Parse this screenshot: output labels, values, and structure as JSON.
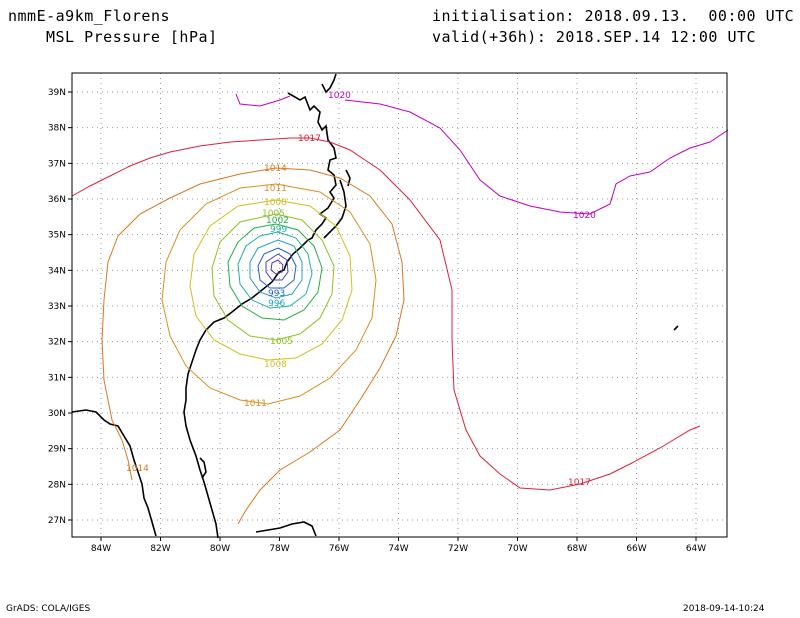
{
  "header": {
    "model": "nmmE-a9km_Florens",
    "field": "MSL Pressure [hPa]",
    "init": "initialisation: 2018.09.13.  00:00 UTC",
    "valid": "valid(+36h): 2018.SEP.14 12:00 UTC"
  },
  "footer": {
    "credit": "GrADS: COLA/IGES",
    "timestamp": "2018-09-14-10:24"
  },
  "axes": {
    "lat_ticks": [
      "39N",
      "38N",
      "37N",
      "36N",
      "35N",
      "34N",
      "33N",
      "32N",
      "31N",
      "30N",
      "29N",
      "28N",
      "27N"
    ],
    "lon_ticks": [
      "84W",
      "82W",
      "80W",
      "78W",
      "76W",
      "74W",
      "72W",
      "70W",
      "68W",
      "66W",
      "64W"
    ]
  },
  "contours": {
    "labels": [
      {
        "value": "1020",
        "color": "#c000c0"
      },
      {
        "value": "1017",
        "color": "#e0203c"
      },
      {
        "value": "1014",
        "color": "#d87820"
      },
      {
        "value": "1011",
        "color": "#d89020"
      },
      {
        "value": "1008",
        "color": "#d0c020"
      },
      {
        "value": "1005",
        "color": "#90c020"
      },
      {
        "value": "1002",
        "color": "#20b040"
      },
      {
        "value": "999",
        "color": "#20b0a0"
      },
      {
        "value": "996",
        "color": "#20a0c0"
      },
      {
        "value": "993",
        "color": "#2060d0"
      }
    ]
  }
}
